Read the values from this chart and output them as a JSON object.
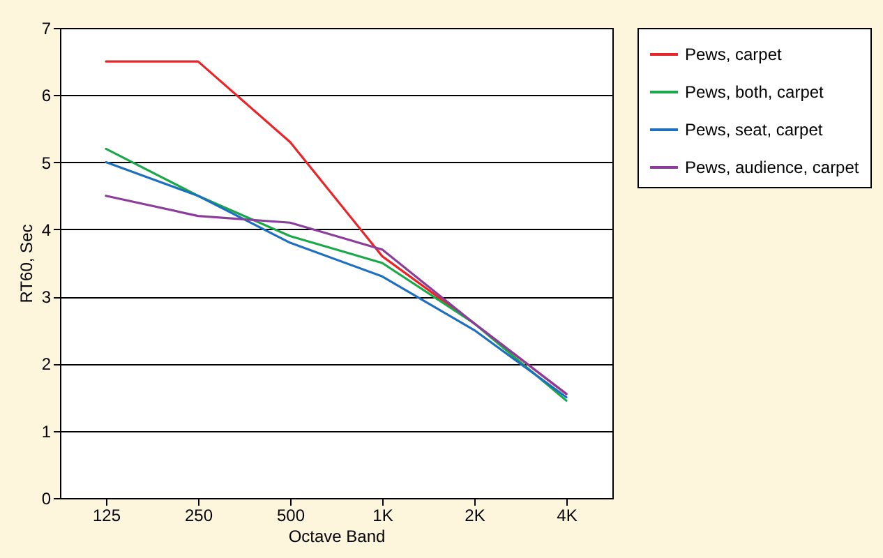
{
  "chart_data": {
    "type": "line",
    "xlabel": "Octave Band",
    "ylabel": "RT60, Sec",
    "categories": [
      "125",
      "250",
      "500",
      "1K",
      "2K",
      "4K"
    ],
    "ylim": [
      0,
      7
    ],
    "yticks": [
      0,
      1,
      2,
      3,
      4,
      5,
      6,
      7
    ],
    "grid": "y",
    "legend": "top right",
    "series": [
      {
        "name": "Pews, carpet",
        "color": "#e8262a",
        "values": [
          6.5,
          6.5,
          5.3,
          3.6,
          2.6,
          1.55
        ]
      },
      {
        "name": "Pews, both, carpet",
        "color": "#1aa84a",
        "values": [
          5.2,
          4.5,
          3.9,
          3.5,
          2.6,
          1.45
        ]
      },
      {
        "name": "Pews, seat, carpet",
        "color": "#1f6fbf",
        "values": [
          5.0,
          4.5,
          3.8,
          3.3,
          2.5,
          1.5
        ]
      },
      {
        "name": "Pews, audience, carpet",
        "color": "#8b3d9a",
        "values": [
          4.5,
          4.2,
          4.1,
          3.7,
          2.6,
          1.55
        ]
      }
    ]
  }
}
